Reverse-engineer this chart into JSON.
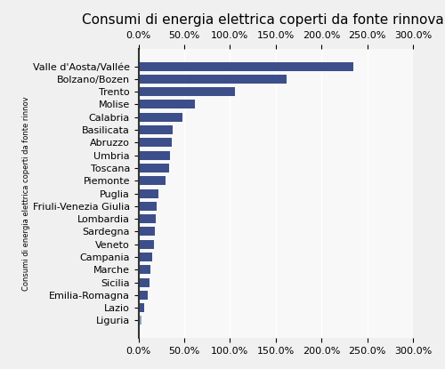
{
  "title": "Consumi di energia elettrica coperti da fonte rinnovabile",
  "ylabel": "Consumi di energia elettrica coperti da fonte rinnov",
  "categories": [
    "Valle d'Aosta/Vallée",
    "Bolzano/Bozen",
    "Trento",
    "Molise",
    "Calabria",
    "Basilicata",
    "Abruzzo",
    "Umbria",
    "Toscana",
    "Piemonte",
    "Puglia",
    "Friuli-Venezia Giulia",
    "Lombardia",
    "Sardegna",
    "Veneto",
    "Campania",
    "Marche",
    "Sicilia",
    "Emilia-Romagna",
    "Lazio",
    "Liguria"
  ],
  "values": [
    235,
    162,
    105,
    62,
    48,
    37,
    36,
    34,
    33,
    30,
    22,
    20,
    19,
    18,
    17,
    15,
    13,
    12,
    10,
    6,
    3
  ],
  "bar_colors_dark": "#3d4f8a",
  "bar_colors_light": "#8fa8c8",
  "light_indices": [
    20
  ],
  "xlim": [
    0,
    300
  ],
  "xticks": [
    0,
    50,
    100,
    150,
    200,
    250,
    300
  ],
  "xtick_labels": [
    "0.0%",
    "50.0%",
    "100.0%",
    "150.0%",
    "200.0%",
    "250.0%",
    "300.0%"
  ],
  "bg_color": "#f0f0f0",
  "plot_bg_color": "#f8f8f8",
  "grid_color": "#ffffff",
  "title_fontsize": 11,
  "tick_fontsize": 8,
  "bar_height": 0.7
}
